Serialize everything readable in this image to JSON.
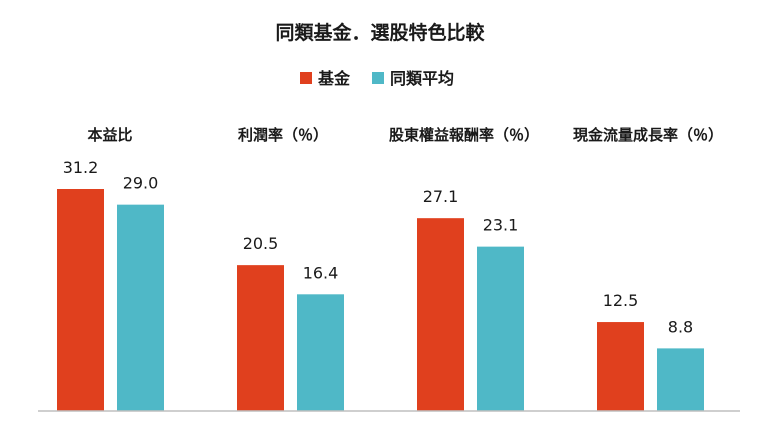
{
  "chart_data": {
    "type": "bar",
    "title": "同類基金．選股特色比較",
    "categories": [
      "本益比",
      "利潤率（％）",
      "股東權益報酬率（％）",
      "現金流量成長率（％）"
    ],
    "series": [
      {
        "name": "基金",
        "color": "#e0401e",
        "values": [
          31.2,
          20.5,
          27.1,
          12.5
        ]
      },
      {
        "name": "同類平均",
        "color": "#4fb8c7",
        "values": [
          29.0,
          16.4,
          23.1,
          8.8
        ]
      }
    ],
    "value_labels": [
      [
        "31.2",
        "20.5",
        "27.1",
        "12.5"
      ],
      [
        "29.0",
        "16.4",
        "23.1",
        "8.8"
      ]
    ],
    "ylim": [
      0,
      35
    ],
    "legend_position": "top-center",
    "grid": false,
    "baseline_color": "#bfbfbf"
  }
}
